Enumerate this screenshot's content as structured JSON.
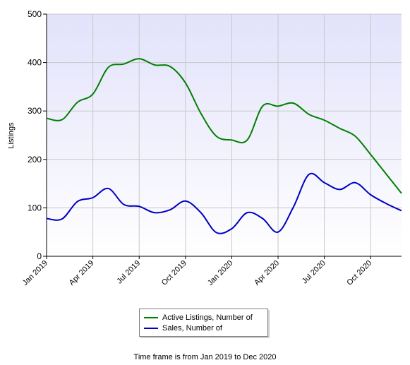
{
  "chart_data": {
    "type": "line",
    "ylabel": "Listings",
    "ylim": [
      0,
      500
    ],
    "yticks": [
      0,
      100,
      200,
      300,
      400,
      500
    ],
    "x": [
      "Jan 2019",
      "Feb 2019",
      "Mar 2019",
      "Apr 2019",
      "May 2019",
      "Jun 2019",
      "Jul 2019",
      "Aug 2019",
      "Sep 2019",
      "Oct 2019",
      "Nov 2019",
      "Dec 2019",
      "Jan 2020",
      "Feb 2020",
      "Mar 2020",
      "Apr 2020",
      "May 2020",
      "Jun 2020",
      "Jul 2020",
      "Aug 2020",
      "Sep 2020",
      "Oct 2020",
      "Nov 2020",
      "Dec 2020"
    ],
    "xtick_labels": [
      "Jan 2019",
      "Apr 2019",
      "Jul 2019",
      "Oct 2019",
      "Jan 2020",
      "Apr 2020",
      "Jul 2020",
      "Oct 2020"
    ],
    "xtick_indices": [
      0,
      3,
      6,
      9,
      12,
      15,
      18,
      21
    ],
    "grid": true,
    "series": [
      {
        "name": "Active Listings, Number of",
        "color": "#008000",
        "values": [
          285,
          282,
          318,
          335,
          390,
          397,
          408,
          395,
          392,
          358,
          295,
          248,
          240,
          240,
          310,
          310,
          316,
          293,
          281,
          264,
          248,
          210,
          170,
          130
        ]
      },
      {
        "name": "Sales, Number of",
        "color": "#0000c0",
        "values": [
          78,
          77,
          113,
          121,
          140,
          107,
          103,
          90,
          96,
          114,
          90,
          49,
          57,
          90,
          78,
          50,
          102,
          169,
          152,
          138,
          152,
          127,
          109,
          94
        ]
      }
    ],
    "plot_background": [
      "#e2e2fb",
      "#ffffff"
    ]
  },
  "legend": {
    "items": [
      {
        "label": "Active Listings, Number of",
        "color": "#008000"
      },
      {
        "label": "Sales, Number of",
        "color": "#0000c0"
      }
    ]
  },
  "footer": {
    "text": "Time frame is from Jan 2019 to Dec 2020"
  }
}
